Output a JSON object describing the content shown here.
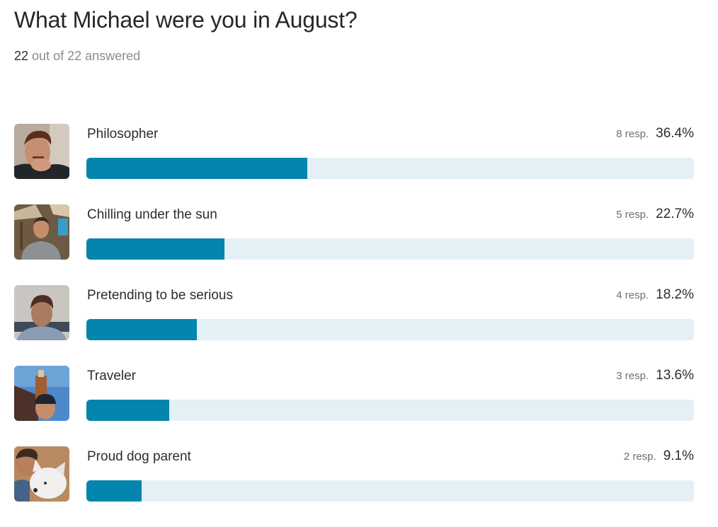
{
  "question": {
    "title": "What Michael were you in August?",
    "answered_count": "22",
    "answered_suffix": "out of 22 answered"
  },
  "colors": {
    "bar_fill": "#0385ad",
    "bar_track": "#e3f0f6"
  },
  "options": [
    {
      "label": "Philosopher",
      "responses": "8 resp.",
      "percent": "36.4%",
      "percent_value": 36.4,
      "image": "man-hand-on-chin-photo"
    },
    {
      "label": "Chilling under the sun",
      "responses": "5 resp.",
      "percent": "22.7%",
      "percent_value": 22.7,
      "image": "man-outdoor-cafe-photo"
    },
    {
      "label": "Pretending to be serious",
      "responses": "4 resp.",
      "percent": "18.2%",
      "percent_value": 18.2,
      "image": "man-office-selfie-photo"
    },
    {
      "label": "Traveler",
      "responses": "3 resp.",
      "percent": "13.6%",
      "percent_value": 13.6,
      "image": "man-city-hall-tower-photo"
    },
    {
      "label": "Proud dog parent",
      "responses": "2 resp.",
      "percent": "9.1%",
      "percent_value": 9.1,
      "image": "man-white-puppy-photo"
    }
  ]
}
